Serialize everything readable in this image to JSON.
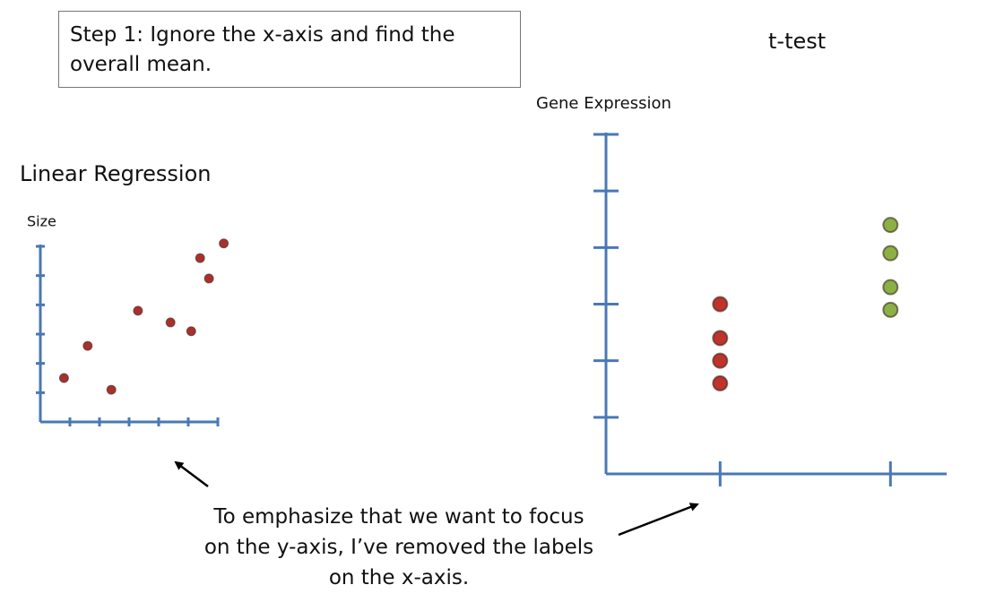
{
  "header": {
    "text": [
      "Step 1: Ignore the x-axis and find the",
      "overall mean."
    ]
  },
  "annotation": [
    "To emphasize that we want to focus",
    "on the y-axis, I’ve removed the labels",
    "on the x-axis."
  ],
  "chart_data": [
    {
      "type": "scatter",
      "title": "Linear Regression",
      "y_label": "Size",
      "xlim": [
        0,
        6
      ],
      "ylim": [
        0,
        6
      ],
      "xticks": [
        1,
        2,
        3,
        4,
        5,
        6
      ],
      "yticks": [
        1,
        2,
        3,
        4,
        5,
        6
      ],
      "series": [
        {
          "color": "#a8302e",
          "x": [
            0.8,
            1.6,
            2.4,
            3.3,
            4.4,
            5.1,
            5.4,
            5.7,
            6.2
          ],
          "values": [
            1.5,
            2.6,
            1.1,
            3.8,
            3.4,
            3.1,
            5.6,
            4.9,
            6.1
          ]
        }
      ]
    },
    {
      "type": "scatter",
      "title": "t-test",
      "y_label": "Gene Expression",
      "xlim": [
        0.33,
        2.33
      ],
      "ylim": [
        0,
        6
      ],
      "xticks": [
        1,
        2
      ],
      "yticks": [
        1,
        2,
        3,
        4,
        5,
        6
      ],
      "series": [
        {
          "color": "#c0322c",
          "x": [
            1,
            1,
            1,
            1
          ],
          "values": [
            3.0,
            2.4,
            2.0,
            1.6
          ]
        },
        {
          "color": "#8cb045",
          "x": [
            2,
            2,
            2,
            2
          ],
          "values": [
            4.4,
            3.9,
            3.3,
            2.9
          ]
        }
      ]
    }
  ]
}
